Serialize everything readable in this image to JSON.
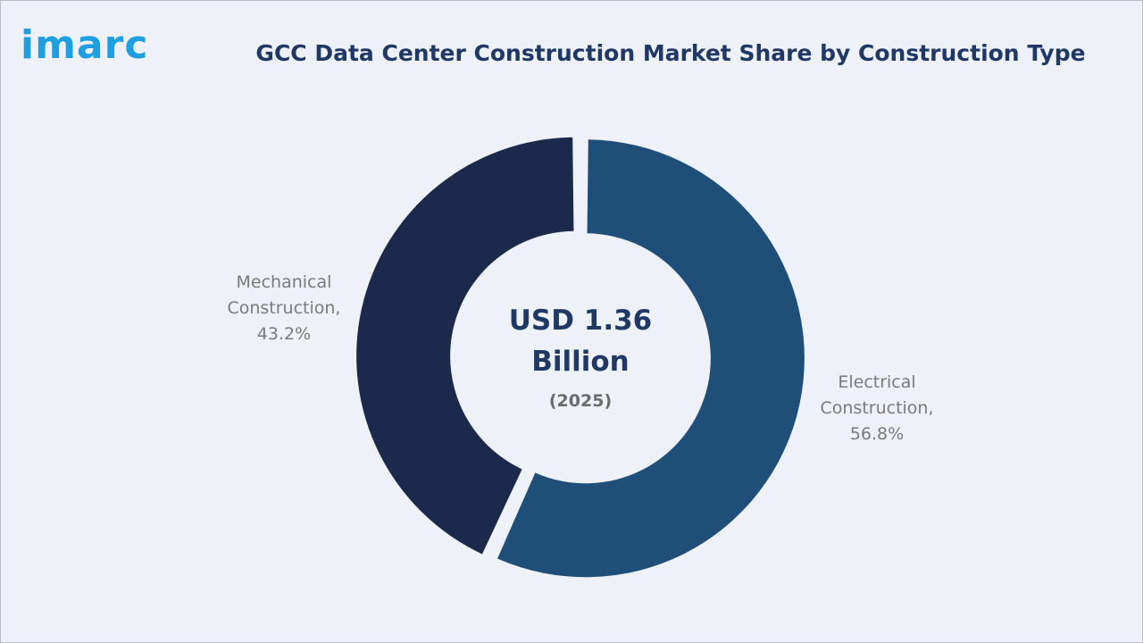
{
  "brand": {
    "logo_text": "imarc"
  },
  "colors": {
    "background": "#eef2f8",
    "title": "#1f3864",
    "logo": "#1ea0e0",
    "label": "#7a7a7a"
  },
  "chart_data": {
    "type": "pie",
    "variant": "donut",
    "title": "GCC Data Center Construction Market Share by Construction Type",
    "center_label": {
      "line1": "USD 1.36",
      "line2": "Billion",
      "line3": "(2025)"
    },
    "categories": [
      "Electrical Construction",
      "Mechanical Construction"
    ],
    "values": [
      56.8,
      43.2
    ],
    "unit": "%",
    "colors": [
      "#1f4e79",
      "#1b2a4a"
    ],
    "labels": [
      {
        "lines": [
          "Electrical",
          "Construction,",
          "56.8%"
        ]
      },
      {
        "lines": [
          "Mechanical",
          "Construction,",
          "43.2%"
        ]
      }
    ]
  }
}
